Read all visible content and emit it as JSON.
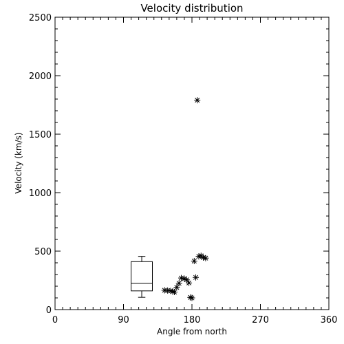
{
  "chart_data": {
    "type": "scatter",
    "title": "Velocity distribution",
    "xlabel": "Angle from north",
    "ylabel": "Velocity (km/s)",
    "xlim": [
      0,
      360
    ],
    "ylim": [
      0,
      2500
    ],
    "xticks": [
      0,
      90,
      180,
      270,
      360
    ],
    "yticks": [
      0,
      500,
      1000,
      1500,
      2000,
      2500
    ],
    "x_tick_labels": [
      "0",
      "90",
      "180",
      "270",
      "360"
    ],
    "y_tick_labels": [
      "0",
      "500",
      "1000",
      "1500",
      "2000",
      "2500"
    ],
    "x_minor_step": 10,
    "y_minor_step": 100,
    "grid": false,
    "marker": "asterisk",
    "color": "#000000",
    "points": [
      {
        "x": 144,
        "y": 165
      },
      {
        "x": 148,
        "y": 163
      },
      {
        "x": 152,
        "y": 160
      },
      {
        "x": 155,
        "y": 155
      },
      {
        "x": 157,
        "y": 150
      },
      {
        "x": 160,
        "y": 190
      },
      {
        "x": 163,
        "y": 225
      },
      {
        "x": 166,
        "y": 270
      },
      {
        "x": 170,
        "y": 265
      },
      {
        "x": 173,
        "y": 255
      },
      {
        "x": 176,
        "y": 228
      },
      {
        "x": 178,
        "y": 104
      },
      {
        "x": 180,
        "y": 100
      },
      {
        "x": 183,
        "y": 415
      },
      {
        "x": 185,
        "y": 275
      },
      {
        "x": 187,
        "y": 1790
      },
      {
        "x": 189,
        "y": 455
      },
      {
        "x": 192,
        "y": 460
      },
      {
        "x": 195,
        "y": 445
      },
      {
        "x": 198,
        "y": 440
      }
    ],
    "box_plot": {
      "x_min": 100,
      "x_max": 128,
      "whisker_min": 105,
      "q1": 160,
      "median": 225,
      "q3": 410,
      "whisker_max": 455
    }
  }
}
